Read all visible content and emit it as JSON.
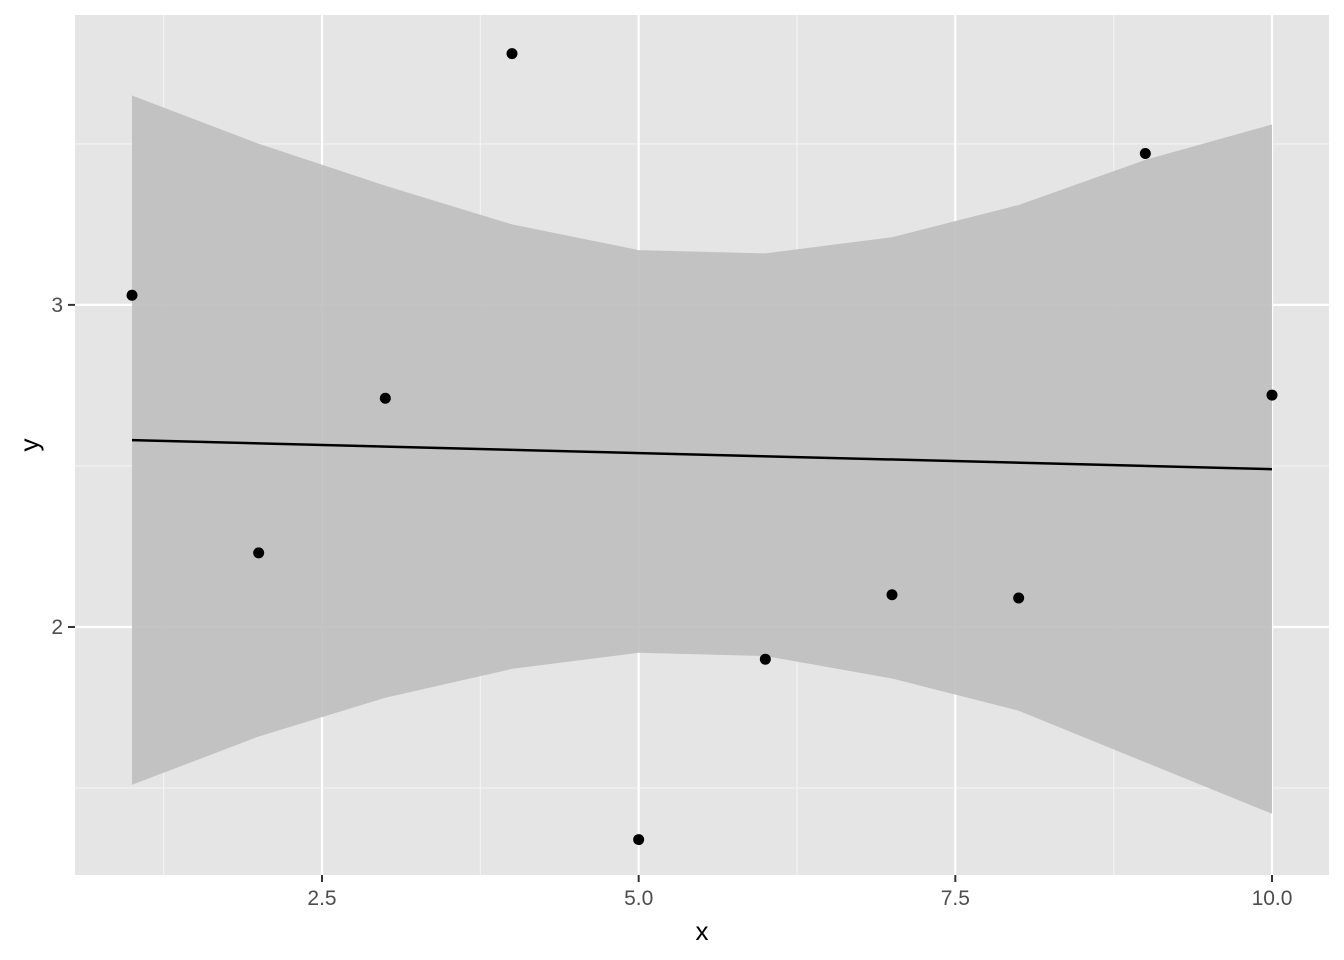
{
  "chart_data": {
    "type": "scatter",
    "title": "",
    "xlabel": "x",
    "ylabel": "y",
    "xlim": [
      0.55,
      10.45
    ],
    "ylim": [
      1.23,
      3.9
    ],
    "x_ticks_major": [
      2.5,
      5.0,
      7.5,
      10.0
    ],
    "x_tick_labels": [
      "2.5",
      "5.0",
      "7.5",
      "10.0"
    ],
    "x_ticks_minor": [
      1.25,
      3.75,
      6.25,
      8.75
    ],
    "y_ticks_major": [
      2,
      3
    ],
    "y_tick_labels": [
      "2",
      "3"
    ],
    "y_ticks_minor": [
      1.5,
      2.5,
      3.5
    ],
    "grid": true,
    "legend": "none",
    "points": [
      {
        "x": 1,
        "y": 3.03
      },
      {
        "x": 2,
        "y": 2.23
      },
      {
        "x": 3,
        "y": 2.71
      },
      {
        "x": 4,
        "y": 3.78
      },
      {
        "x": 5,
        "y": 1.34
      },
      {
        "x": 6,
        "y": 1.9
      },
      {
        "x": 7,
        "y": 2.1
      },
      {
        "x": 8,
        "y": 2.09
      },
      {
        "x": 9,
        "y": 3.47
      },
      {
        "x": 10,
        "y": 2.72
      }
    ],
    "fit_line": {
      "x": [
        1,
        10
      ],
      "y": [
        2.58,
        2.49
      ]
    },
    "confidence_band": {
      "x": [
        1,
        2,
        3,
        4,
        5,
        6,
        7,
        8,
        9,
        10
      ],
      "upper": [
        3.65,
        3.5,
        3.37,
        3.25,
        3.17,
        3.16,
        3.21,
        3.31,
        3.45,
        3.56
      ],
      "lower": [
        1.51,
        1.66,
        1.78,
        1.87,
        1.92,
        1.91,
        1.84,
        1.74,
        1.58,
        1.42
      ]
    },
    "colors": {
      "panel_background": "#E5E5E5",
      "grid_major": "#FFFFFF",
      "grid_minor": "#F2F2F2",
      "points": "#000000",
      "fit_line": "#000000",
      "band_fill": "#BEBEBE",
      "tick_text": "#4D4D4D",
      "tick_mark": "#333333"
    }
  }
}
